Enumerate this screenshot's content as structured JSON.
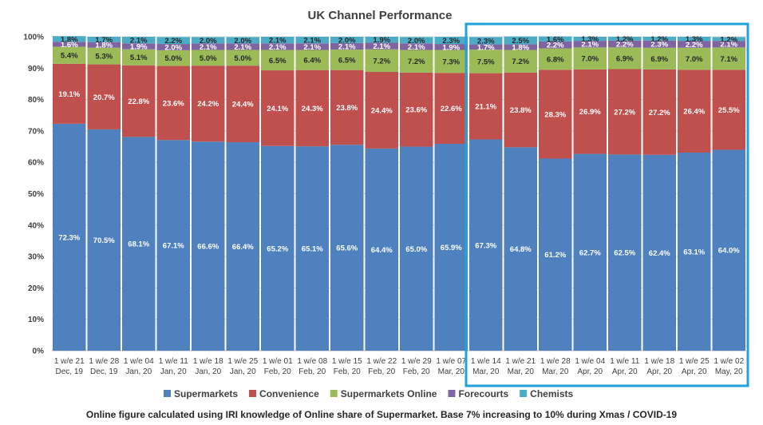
{
  "chart_data": {
    "type": "bar",
    "stacked": true,
    "title": "UK Channel Performance",
    "categories": [
      [
        "1 w/e 21",
        "Dec, 19"
      ],
      [
        "1 w/e 28",
        "Dec, 19"
      ],
      [
        "1 w/e 04",
        "Jan, 20"
      ],
      [
        "1 w/e 11",
        "Jan, 20"
      ],
      [
        "1 w/e 18",
        "Jan, 20"
      ],
      [
        "1 w/e 25",
        "Jan, 20"
      ],
      [
        "1 w/e 01",
        "Feb, 20"
      ],
      [
        "1 w/e 08",
        "Feb, 20"
      ],
      [
        "1 w/e 15",
        "Feb, 20"
      ],
      [
        "1 w/e 22",
        "Feb, 20"
      ],
      [
        "1 w/e 29",
        "Feb, 20"
      ],
      [
        "1 w/e 07",
        "Mar, 20"
      ],
      [
        "1 w/e 14",
        "Mar, 20"
      ],
      [
        "1 w/e 21",
        "Mar, 20"
      ],
      [
        "1 w/e 28",
        "Mar, 20"
      ],
      [
        "1 w/e 04",
        "Apr, 20"
      ],
      [
        "1 w/e 11",
        "Apr, 20"
      ],
      [
        "1 w/e 18",
        "Apr, 20"
      ],
      [
        "1 w/e 25",
        "Apr, 20"
      ],
      [
        "1 w/e 02",
        "May, 20"
      ]
    ],
    "series": [
      {
        "name": "Supermarkets",
        "color": "#4E81BD",
        "values": [
          72.3,
          70.5,
          68.1,
          67.1,
          66.6,
          66.4,
          65.2,
          65.1,
          65.6,
          64.4,
          65.0,
          65.9,
          67.3,
          64.8,
          61.2,
          62.7,
          62.5,
          62.4,
          63.1,
          64.0
        ]
      },
      {
        "name": "Convenience",
        "color": "#C0504D",
        "values": [
          19.1,
          20.7,
          22.8,
          23.6,
          24.2,
          24.4,
          24.1,
          24.3,
          23.8,
          24.4,
          23.6,
          22.6,
          21.1,
          23.8,
          28.3,
          26.9,
          27.2,
          27.2,
          26.4,
          25.5
        ]
      },
      {
        "name": "Supermarkets Online",
        "color": "#9BBB59",
        "values": [
          5.4,
          5.3,
          5.1,
          5.0,
          5.0,
          5.0,
          6.5,
          6.4,
          6.5,
          7.2,
          7.2,
          7.3,
          7.5,
          7.2,
          6.8,
          7.0,
          6.9,
          6.9,
          7.0,
          7.1
        ]
      },
      {
        "name": "Forecourts",
        "color": "#8064A2",
        "values": [
          1.6,
          1.8,
          1.9,
          2.0,
          2.1,
          2.1,
          2.1,
          2.1,
          2.1,
          2.1,
          2.1,
          1.9,
          1.7,
          1.8,
          2.2,
          2.1,
          2.2,
          2.3,
          2.2,
          2.1
        ]
      },
      {
        "name": "Chemists",
        "color": "#4BACC6",
        "values": [
          1.8,
          1.7,
          2.1,
          2.2,
          2.0,
          2.0,
          2.1,
          2.1,
          2.0,
          1.9,
          2.0,
          2.3,
          2.3,
          2.5,
          1.6,
          1.3,
          1.2,
          1.2,
          1.3,
          1.2
        ]
      }
    ],
    "ylim": [
      0,
      100
    ],
    "yticks": [
      "0%",
      "10%",
      "20%",
      "30%",
      "40%",
      "50%",
      "60%",
      "70%",
      "80%",
      "90%",
      "100%"
    ],
    "legend_position": "bottom",
    "highlight_box_color": "#1FA3D9",
    "highlight_range": [
      "1 w/e 14 Mar, 20",
      "1 w/e 02 May, 20"
    ]
  },
  "footnote": "Online figure calculated using IRI knowledge of Online share of Supermarket. Base 7% increasing to 10% during Xmas / COVID-19"
}
